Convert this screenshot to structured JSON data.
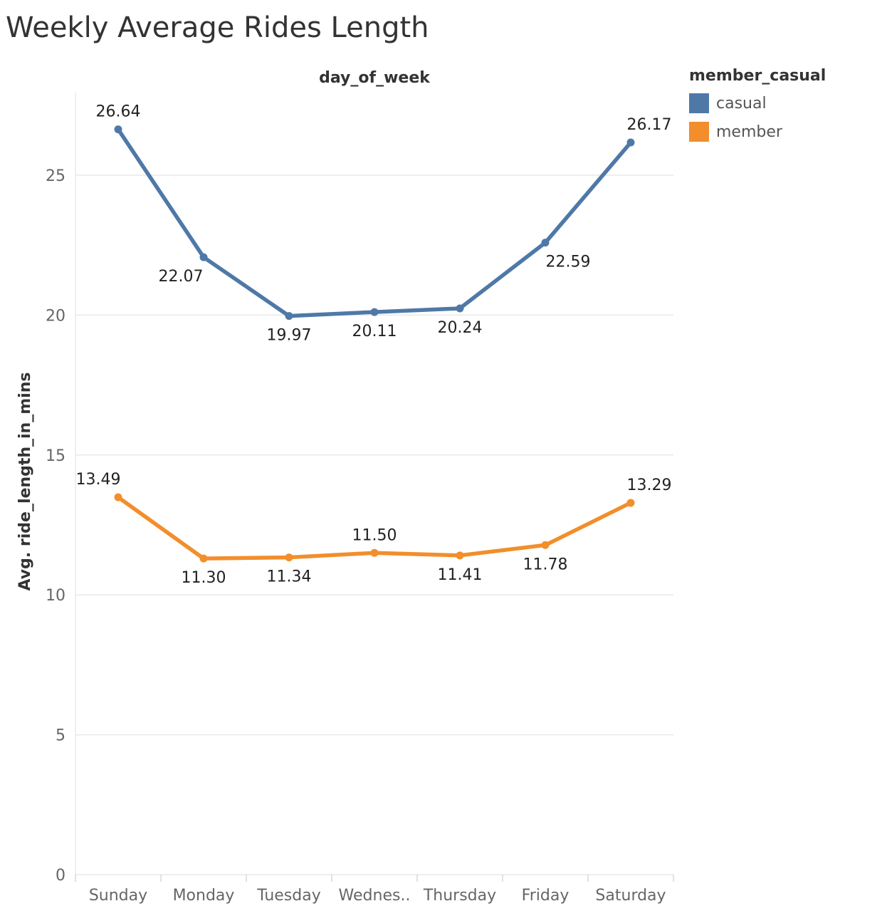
{
  "title": "Weekly Average Rides Length",
  "colors": {
    "casual": "#4e79a7",
    "member": "#f28e2b",
    "grid": "#e9e9e9",
    "axis_text": "#666666",
    "label_text": "#222222"
  },
  "legend": {
    "title": "member_casual",
    "items": [
      {
        "label": "casual",
        "color": "#4e79a7"
      },
      {
        "label": "member",
        "color": "#f28e2b"
      }
    ]
  },
  "chart_data": {
    "type": "line",
    "title": "Weekly Average Rides Length",
    "xlabel": "day_of_week",
    "ylabel": "Avg. ride_length_in_mins",
    "categories": [
      "Sunday",
      "Monday",
      "Tuesday",
      "Wednes..",
      "Thursday",
      "Friday",
      "Saturday"
    ],
    "ylim": [
      0,
      28
    ],
    "yticks": [
      0,
      5,
      10,
      15,
      20,
      25
    ],
    "grid": true,
    "legend_position": "top-right",
    "series": [
      {
        "name": "casual",
        "color": "#4e79a7",
        "values": [
          26.64,
          22.07,
          19.97,
          20.11,
          20.24,
          22.59,
          26.17
        ],
        "labels": [
          "26.64",
          "22.07",
          "19.97",
          "20.11",
          "20.24",
          "22.59",
          "26.17"
        ]
      },
      {
        "name": "member",
        "color": "#f28e2b",
        "values": [
          13.49,
          11.3,
          11.34,
          11.5,
          11.41,
          11.78,
          13.29
        ],
        "labels": [
          "13.49",
          "11.30",
          "11.34",
          "11.50",
          "11.41",
          "11.78",
          "13.29"
        ]
      }
    ]
  }
}
